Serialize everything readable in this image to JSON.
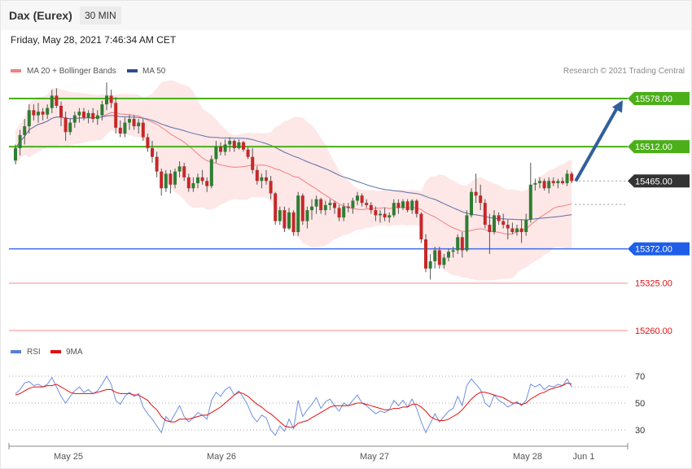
{
  "header": {
    "title": "Dax (Eurex)",
    "timeframe": "30 MIN",
    "date": "Friday, May 28, 2021 7:46:34 AM CET",
    "copyright": "Research © 2021 Trading Central"
  },
  "legend": {
    "ma20": "MA 20 + Bollinger Bands",
    "ma50": "MA 50",
    "rsi": "RSI",
    "rsi_ma": "9MA"
  },
  "colors": {
    "up_candle": "#2e7d32",
    "down_candle": "#c62828",
    "bollinger_fill": "#fde3e3",
    "ma20": "#f08080",
    "ma50": "#5b6fa6",
    "resistance": "#4caf1a",
    "pivot": "#3d6ee6",
    "support": "#f4a3a8",
    "arrow": "#2f5f9e",
    "rsi": "#6f8fe0",
    "rsi_ma": "#e01010"
  },
  "chart_data": {
    "type": "candlestick",
    "title": "Dax (Eurex)",
    "price_ylim": [
      15227,
      15620
    ],
    "x_labels": [
      "May 25",
      "May 26",
      "May 27",
      "May 28",
      "Jun 1"
    ],
    "price_levels": [
      {
        "role": "resistance",
        "label": "15578.00",
        "value": 15578
      },
      {
        "role": "resistance",
        "label": "15512.00",
        "value": 15512
      },
      {
        "role": "last",
        "label": "15465.00",
        "value": 15465
      },
      {
        "role": "pivot",
        "label": "15372.00",
        "value": 15372
      },
      {
        "role": "support",
        "label": "15325.00",
        "value": 15325
      },
      {
        "role": "support",
        "label": "15260.00",
        "value": 15260
      }
    ],
    "projection": {
      "from": 15465,
      "to": 15578
    },
    "dotted_ma50_level": 15433,
    "candles": [
      [
        15493,
        15515,
        15488,
        15510
      ],
      [
        15510,
        15535,
        15500,
        15528
      ],
      [
        15528,
        15550,
        15515,
        15540
      ],
      [
        15540,
        15570,
        15530,
        15562
      ],
      [
        15562,
        15570,
        15548,
        15555
      ],
      [
        15555,
        15572,
        15545,
        15560
      ],
      [
        15560,
        15565,
        15548,
        15556
      ],
      [
        15556,
        15570,
        15550,
        15565
      ],
      [
        15565,
        15590,
        15558,
        15582
      ],
      [
        15582,
        15592,
        15565,
        15568
      ],
      [
        15568,
        15574,
        15540,
        15552
      ],
      [
        15552,
        15560,
        15520,
        15532
      ],
      [
        15532,
        15550,
        15528,
        15545
      ],
      [
        15545,
        15560,
        15538,
        15555
      ],
      [
        15555,
        15565,
        15545,
        15560
      ],
      [
        15560,
        15565,
        15548,
        15552
      ],
      [
        15552,
        15562,
        15544,
        15558
      ],
      [
        15558,
        15565,
        15545,
        15550
      ],
      [
        15550,
        15562,
        15542,
        15555
      ],
      [
        15555,
        15575,
        15548,
        15570
      ],
      [
        15570,
        15600,
        15562,
        15582
      ],
      [
        15582,
        15590,
        15565,
        15572
      ],
      [
        15572,
        15580,
        15530,
        15538
      ],
      [
        15538,
        15548,
        15525,
        15530
      ],
      [
        15530,
        15552,
        15525,
        15545
      ],
      [
        15545,
        15556,
        15535,
        15550
      ],
      [
        15550,
        15555,
        15535,
        15540
      ],
      [
        15540,
        15550,
        15530,
        15545
      ],
      [
        15545,
        15550,
        15520,
        15525
      ],
      [
        15525,
        15530,
        15505,
        15510
      ],
      [
        15510,
        15520,
        15490,
        15498
      ],
      [
        15498,
        15505,
        15470,
        15478
      ],
      [
        15478,
        15482,
        15445,
        15455
      ],
      [
        15455,
        15480,
        15450,
        15475
      ],
      [
        15475,
        15480,
        15448,
        15460
      ],
      [
        15460,
        15482,
        15455,
        15478
      ],
      [
        15478,
        15492,
        15470,
        15485
      ],
      [
        15485,
        15490,
        15465,
        15470
      ],
      [
        15470,
        15475,
        15450,
        15455
      ],
      [
        15455,
        15470,
        15450,
        15462
      ],
      [
        15462,
        15475,
        15455,
        15470
      ],
      [
        15470,
        15480,
        15460,
        15465
      ],
      [
        15465,
        15470,
        15450,
        15458
      ],
      [
        15458,
        15500,
        15455,
        15495
      ],
      [
        15495,
        15520,
        15490,
        15512
      ],
      [
        15512,
        15518,
        15500,
        15505
      ],
      [
        15505,
        15522,
        15500,
        15515
      ],
      [
        15515,
        15525,
        15505,
        15520
      ],
      [
        15520,
        15522,
        15505,
        15510
      ],
      [
        15510,
        15522,
        15508,
        15518
      ],
      [
        15518,
        15520,
        15505,
        15508
      ],
      [
        15508,
        15512,
        15495,
        15498
      ],
      [
        15498,
        15510,
        15475,
        15480
      ],
      [
        15480,
        15485,
        15460,
        15465
      ],
      [
        15465,
        15475,
        15455,
        15470
      ],
      [
        15470,
        15480,
        15460,
        15465
      ],
      [
        15465,
        15472,
        15440,
        15448
      ],
      [
        15448,
        15450,
        15405,
        15410
      ],
      [
        15410,
        15430,
        15405,
        15425
      ],
      [
        15425,
        15430,
        15395,
        15400
      ],
      [
        15400,
        15428,
        15398,
        15422
      ],
      [
        15422,
        15425,
        15390,
        15395
      ],
      [
        15395,
        15450,
        15390,
        15445
      ],
      [
        15445,
        15448,
        15405,
        15410
      ],
      [
        15410,
        15430,
        15400,
        15425
      ],
      [
        15425,
        15440,
        15412,
        15430
      ],
      [
        15430,
        15445,
        15420,
        15440
      ],
      [
        15440,
        15442,
        15420,
        15425
      ],
      [
        15425,
        15438,
        15418,
        15432
      ],
      [
        15432,
        15440,
        15425,
        15435
      ],
      [
        15435,
        15438,
        15420,
        15428
      ],
      [
        15428,
        15432,
        15410,
        15415
      ],
      [
        15415,
        15435,
        15410,
        15430
      ],
      [
        15430,
        15435,
        15422,
        15428
      ],
      [
        15428,
        15442,
        15420,
        15438
      ],
      [
        15438,
        15450,
        15432,
        15445
      ],
      [
        15445,
        15448,
        15430,
        15435
      ],
      [
        15435,
        15440,
        15428,
        15432
      ],
      [
        15432,
        15436,
        15420,
        15425
      ],
      [
        15425,
        15430,
        15410,
        15418
      ],
      [
        15418,
        15425,
        15408,
        15420
      ],
      [
        15420,
        15428,
        15410,
        15415
      ],
      [
        15415,
        15422,
        15408,
        15418
      ],
      [
        15418,
        15440,
        15415,
        15435
      ],
      [
        15435,
        15440,
        15420,
        15428
      ],
      [
        15428,
        15440,
        15425,
        15437
      ],
      [
        15437,
        15440,
        15422,
        15425
      ],
      [
        15425,
        15440,
        15420,
        15438
      ],
      [
        15438,
        15440,
        15415,
        15420
      ],
      [
        15420,
        15422,
        15380,
        15385
      ],
      [
        15385,
        15392,
        15340,
        15345
      ],
      [
        15345,
        15365,
        15330,
        15355
      ],
      [
        15355,
        15375,
        15345,
        15370
      ],
      [
        15370,
        15375,
        15345,
        15350
      ],
      [
        15350,
        15365,
        15345,
        15360
      ],
      [
        15360,
        15372,
        15355,
        15368
      ],
      [
        15368,
        15375,
        15360,
        15370
      ],
      [
        15370,
        15392,
        15365,
        15388
      ],
      [
        15388,
        15395,
        15360,
        15370
      ],
      [
        15370,
        15425,
        15368,
        15418
      ],
      [
        15418,
        15455,
        15415,
        15450
      ],
      [
        15450,
        15475,
        15435,
        15445
      ],
      [
        15445,
        15460,
        15425,
        15435
      ],
      [
        15435,
        15440,
        15400,
        15405
      ],
      [
        15405,
        15420,
        15365,
        15395
      ],
      [
        15395,
        15425,
        15392,
        15418
      ],
      [
        15418,
        15422,
        15405,
        15410
      ],
      [
        15410,
        15420,
        15400,
        15405
      ],
      [
        15405,
        15412,
        15385,
        15400
      ],
      [
        15400,
        15408,
        15392,
        15395
      ],
      [
        15395,
        15405,
        15390,
        15400
      ],
      [
        15400,
        15412,
        15380,
        15395
      ],
      [
        15395,
        15420,
        15390,
        15412
      ],
      [
        15412,
        15490,
        15408,
        15460
      ],
      [
        15460,
        15468,
        15452,
        15462
      ],
      [
        15462,
        15470,
        15455,
        15465
      ],
      [
        15465,
        15468,
        15452,
        15455
      ],
      [
        15455,
        15470,
        15448,
        15465
      ],
      [
        15465,
        15470,
        15458,
        15462
      ],
      [
        15462,
        15468,
        15455,
        15465
      ],
      [
        15465,
        15470,
        15460,
        15462
      ],
      [
        15462,
        15480,
        15458,
        15475
      ],
      [
        15475,
        15478,
        15462,
        15465
      ]
    ],
    "rsi_ylim": [
      20,
      80
    ],
    "rsi_levels": [
      70,
      50,
      30
    ],
    "rsi": [
      57,
      60,
      65,
      66,
      63,
      64,
      62,
      64,
      69,
      62,
      55,
      50,
      55,
      59,
      62,
      58,
      60,
      57,
      59,
      64,
      70,
      64,
      52,
      49,
      55,
      58,
      55,
      57,
      47,
      42,
      38,
      33,
      28,
      40,
      36,
      42,
      48,
      40,
      36,
      39,
      43,
      41,
      38,
      52,
      58,
      55,
      60,
      62,
      56,
      59,
      54,
      48,
      40,
      36,
      41,
      39,
      30,
      26,
      33,
      29,
      38,
      31,
      52,
      40,
      45,
      49,
      54,
      46,
      51,
      53,
      48,
      44,
      50,
      48,
      52,
      56,
      50,
      48,
      45,
      42,
      44,
      43,
      45,
      52,
      48,
      52,
      47,
      53,
      46,
      36,
      28,
      35,
      42,
      36,
      40,
      44,
      46,
      55,
      48,
      63,
      68,
      64,
      60,
      50,
      47,
      56,
      52,
      50,
      47,
      49,
      51,
      48,
      52,
      64,
      62,
      64,
      60,
      63,
      62,
      64,
      63,
      68,
      62
    ],
    "rsi_ma": [
      56,
      57,
      59,
      61,
      62,
      62,
      62,
      63,
      63,
      64,
      62,
      60,
      58,
      57,
      57,
      57,
      57,
      57,
      58,
      59,
      60,
      60,
      58,
      57,
      57,
      57,
      56,
      56,
      54,
      52,
      48,
      45,
      40,
      37,
      36,
      36,
      38,
      38,
      38,
      39,
      40,
      41,
      41,
      43,
      45,
      47,
      50,
      53,
      56,
      58,
      57,
      55,
      52,
      49,
      47,
      44,
      42,
      39,
      36,
      33,
      32,
      32,
      35,
      36,
      37,
      39,
      41,
      43,
      45,
      47,
      48,
      48,
      48,
      48,
      49,
      50,
      50,
      49,
      48,
      47,
      46,
      45,
      45,
      46,
      46,
      47,
      47,
      49,
      49,
      47,
      44,
      40,
      38,
      37,
      37,
      38,
      40,
      42,
      45,
      49,
      53,
      56,
      58,
      58,
      57,
      56,
      55,
      54,
      52,
      50,
      50,
      49,
      50,
      53,
      55,
      57,
      58,
      60,
      61,
      62,
      63,
      65,
      64
    ]
  }
}
